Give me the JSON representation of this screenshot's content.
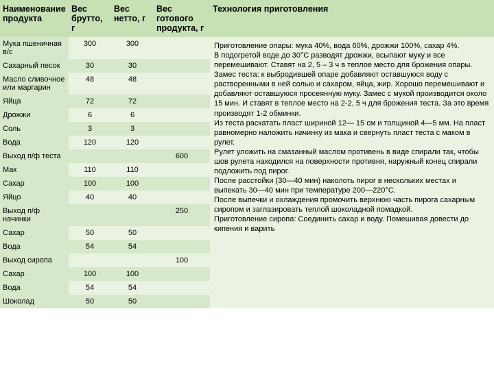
{
  "colors": {
    "header_bg": "#c7e0b4",
    "row_even": "#eaf3e2",
    "row_odd": "#d6e8c9",
    "label_col_bg": "#d6e8c9",
    "text": "#000000"
  },
  "columns": {
    "name": "Наименование продукта",
    "brutto": "Вес брутто, г",
    "netto": "Вес нетто, г",
    "ready": "Вес готового продукта, г",
    "tech": "Технология приготовления"
  },
  "rows": [
    {
      "name": "Мука пшеничная в/с",
      "brutto": "300",
      "netto": "300",
      "ready": ""
    },
    {
      "name": "Сахарный песок",
      "brutto": "30",
      "netto": "30",
      "ready": ""
    },
    {
      "name": "Масло сливочное или маргарин",
      "brutto": "48",
      "netto": "48",
      "ready": ""
    },
    {
      "name": "Яйца",
      "brutto": "72",
      "netto": "72",
      "ready": ""
    },
    {
      "name": "Дрожжи",
      "brutto": "6",
      "netto": "6",
      "ready": ""
    },
    {
      "name": "Соль",
      "brutto": "3",
      "netto": "3",
      "ready": ""
    },
    {
      "name": "Вода",
      "brutto": "120",
      "netto": "120",
      "ready": ""
    },
    {
      "name": "Выход п/ф теста",
      "brutto": "",
      "netto": "",
      "ready": "600"
    },
    {
      "name": "Мак",
      "brutto": "110",
      "netto": "110",
      "ready": ""
    },
    {
      "name": "Сахар",
      "brutto": "100",
      "netto": "100",
      "ready": ""
    },
    {
      "name": "Яйцо",
      "brutto": "40",
      "netto": "40",
      "ready": ""
    },
    {
      "name": "Выход п/ф начинки",
      "brutto": "",
      "netto": "",
      "ready": "250"
    },
    {
      "name": "Сахар",
      "brutto": "50",
      "netto": "50",
      "ready": ""
    },
    {
      "name": "Вода",
      "brutto": "54",
      "netto": "54",
      "ready": ""
    },
    {
      "name": "Выход сиропа",
      "brutto": "",
      "netto": "",
      "ready": "100"
    },
    {
      "name": "Сахар",
      "brutto": "100",
      "netto": "100",
      "ready": ""
    },
    {
      "name": "Вода",
      "brutto": "54",
      "netto": "54",
      "ready": ""
    },
    {
      "name": "Шоколад",
      "brutto": "50",
      "netto": "50",
      "ready": ""
    }
  ],
  "technology": "Приготовление опары: мука 40%, вода 60%, дрожжи 100%, сахар 4%.\nВ подогретой воде до 30°С разводят дрожжи, всыпают муку и все перемешивают. Ставят на 2, 5 – 3 ч в теплое место для брожения опары.\nЗамес теста: к выбродившей опаре добавляют оставшуюся воду с растворенными в ней солью и сахаром, яйца, жир. Хорошо перемешивают и добавляют оставшуюся просеянную муку. Замес с мукой производится около 15 мин. И ставят в теплое место на 2-2, 5 ч для брожения теста. За это время производят 1-2 обминки.\nИз теста раскатать пласт шириной 12— 15 см и толщиной 4—5 мм. На пласт равномерно наложить начинку из мака и свернуть пласт теста с маком в рулет.\nРулет уложить на смазанный маслом противень в виде спирали так, чтобы шов рулета находился на поверхности противня, наружный конец спирали подложить под пирог.\nПосле расстойки (30—40 мин) наколоть пирог в нескольких местах и выпекать 30—40 мин при температуре 200—220°С.\nПосле выпечки и охлаждения промочить верхнюю часть пирога сахарным сиропом и заглазировать теплой шоколадной помадкой.\nПриготовление сиропа: Соединить сахар и воду. Помешивая довести до кипения и варить"
}
